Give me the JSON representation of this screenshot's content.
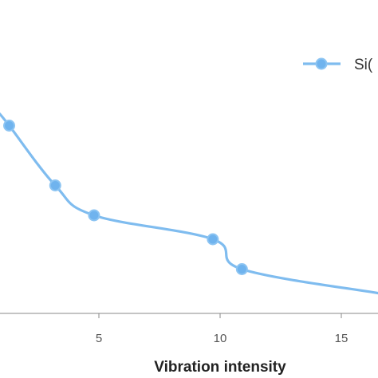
{
  "chart_data": {
    "type": "line",
    "xlabel": "Vibration intensity",
    "ylabel": "",
    "x_ticks": [
      5,
      10,
      15
    ],
    "xlim": [
      1,
      16.5
    ],
    "ylim": [
      0,
      1
    ],
    "grid": false,
    "legend_position": "top-right",
    "series": [
      {
        "name": "Si(",
        "color": "#6fb3ee",
        "points": [
          {
            "x": 1.3,
            "y": 0.78
          },
          {
            "x": 3.2,
            "y": 0.58
          },
          {
            "x": 4.8,
            "y": 0.48
          },
          {
            "x": 9.7,
            "y": 0.4
          },
          {
            "x": 10.9,
            "y": 0.3
          },
          {
            "x": 16.5,
            "y": 0.22
          }
        ],
        "start_y": 0.82
      }
    ]
  }
}
